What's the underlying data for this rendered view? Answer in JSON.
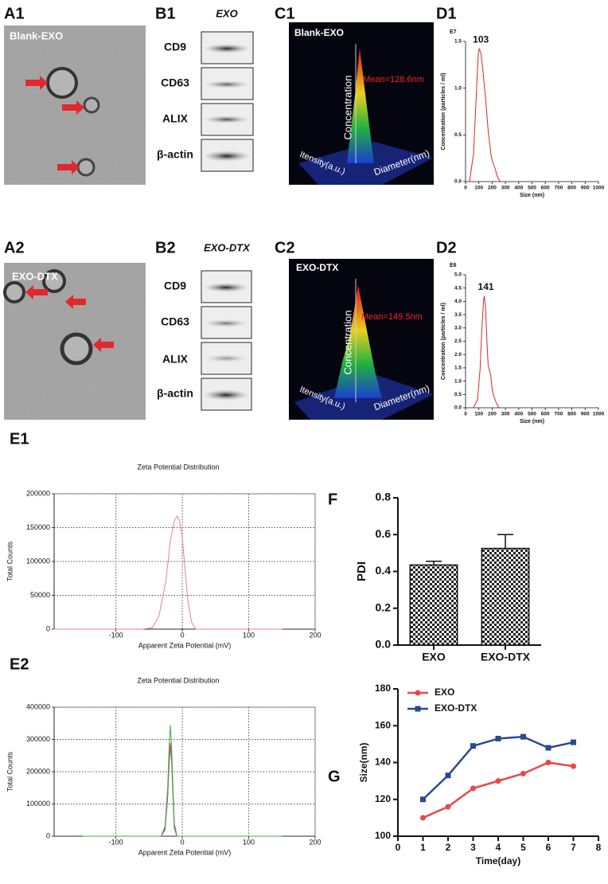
{
  "panels": [
    "A1",
    "B1",
    "C1",
    "D1",
    "A2",
    "B2",
    "C2",
    "D2",
    "E1",
    "F",
    "E2",
    "G"
  ],
  "tem": [
    {
      "label": "Blank-EXO"
    },
    {
      "label": "EXO-DTX"
    }
  ],
  "blots": [
    {
      "header": "EXO",
      "proteins": [
        "CD9",
        "CD63",
        "ALIX",
        "β-actin"
      ]
    },
    {
      "header": "EXO-DTX",
      "proteins": [
        "CD9",
        "CD63",
        "ALIX",
        "β-actin"
      ]
    }
  ],
  "nta3d": [
    {
      "label": "Blank-EXO",
      "mean": "Mean=128.6nm",
      "z_axis": "Concentration",
      "x_axis": "Itensity(a.u.)",
      "y_axis": "Diameter(nm)"
    },
    {
      "label": "EXO-DTX",
      "mean": "Mean=149.5nm",
      "z_axis": "Concentration",
      "x_axis": "Itensity(a.u.)",
      "y_axis": "Diameter(nm)"
    }
  ],
  "chart_data": [
    {
      "type": "line",
      "y_exponent": "E7",
      "peak": 103,
      "xlabel": "Size (nm)",
      "ylabel": "Concentration (particles / ml)",
      "x": [
        30,
        60,
        80,
        95,
        103,
        115,
        130,
        150,
        170,
        190,
        205,
        220,
        240,
        260
      ],
      "series": [
        {
          "color": "#d9262c",
          "values": [
            0,
            0.3,
            0.9,
            1.35,
            1.42,
            1.38,
            1.2,
            0.9,
            0.55,
            0.3,
            0.2,
            0.15,
            0.05,
            0
          ]
        }
      ],
      "xlim": [
        0,
        1000
      ],
      "ylim": [
        0,
        1.5
      ],
      "xticks": [
        0,
        100,
        200,
        300,
        400,
        500,
        600,
        700,
        800,
        900,
        1000
      ],
      "yticks": [
        {
          "value": 0,
          "label": "0.0"
        },
        0.5,
        {
          "value": 1,
          "label": "1.0"
        },
        1.5
      ]
    },
    {
      "type": "line",
      "y_exponent": "E6",
      "peak": 141,
      "xlabel": "Size (nm)",
      "ylabel": "Concentration (particles / ml)",
      "x": [
        60,
        90,
        110,
        125,
        135,
        141,
        150,
        160,
        170,
        180,
        190,
        200,
        215,
        230,
        250
      ],
      "series": [
        {
          "color": "#d9262c",
          "values": [
            0,
            0.3,
            1.5,
            3.2,
            4.0,
            4.2,
            3.8,
            2.6,
            1.6,
            1.4,
            1.2,
            0.7,
            0.4,
            0.2,
            0
          ]
        }
      ],
      "xlim": [
        0,
        1000
      ],
      "ylim": [
        0,
        5
      ],
      "xticks": [
        0,
        100,
        200,
        300,
        400,
        500,
        600,
        700,
        800,
        900,
        1000
      ],
      "yticks": [
        {
          "value": 0,
          "label": "0.0"
        },
        0.5,
        {
          "value": 1,
          "label": "1.0"
        },
        1.5,
        {
          "value": 2,
          "label": "2.0"
        },
        2.5,
        {
          "value": 3,
          "label": "3.0"
        },
        3.5,
        {
          "value": 4,
          "label": "4.0"
        },
        4.5,
        {
          "value": 5,
          "label": "5.0"
        }
      ]
    },
    {
      "type": "line",
      "title": "Zeta Potential Distribution",
      "xlabel": "Apparent Zeta Potential (mV)",
      "ylabel": "Total Counts",
      "grid": true,
      "x": [
        -193,
        -60,
        -45,
        -35,
        -25,
        -18,
        -12,
        -8,
        -4,
        0,
        4,
        8,
        14,
        20,
        150
      ],
      "series": [
        {
          "color": "#f08080",
          "values": [
            0,
            0,
            2000,
            20000,
            70000,
            130000,
            160000,
            167000,
            160000,
            135000,
            90000,
            45000,
            10000,
            0,
            0
          ]
        }
      ],
      "xlim": [
        -193,
        200
      ],
      "ylim": [
        0,
        200000
      ],
      "xticks": [
        -100,
        0,
        100,
        200
      ],
      "yticks": [
        0,
        50000,
        100000,
        150000,
        200000
      ]
    },
    {
      "type": "bar",
      "ylabel": "PDI",
      "categories": [
        "EXO",
        "EXO-DTX"
      ],
      "values": [
        0.435,
        0.525
      ],
      "errors": [
        0.02,
        0.075
      ],
      "ylim": [
        0,
        0.8
      ],
      "yticks": [
        {
          "value": 0,
          "label": "0.0"
        },
        0.2,
        0.4,
        0.6,
        0.8
      ]
    },
    {
      "type": "line",
      "title": "Zeta Potential Distribution",
      "xlabel": "Apparent Zeta Potential (mV)",
      "ylabel": "Total Counts",
      "grid": true,
      "x": [
        -150,
        -32,
        -26,
        -22,
        -20,
        -18,
        -16,
        -14,
        -12,
        -8,
        150
      ],
      "series": [
        {
          "color": "#2f6fd6",
          "values": [
            0,
            0,
            20000,
            120000,
            220000,
            280000,
            230000,
            120000,
            25000,
            0,
            0
          ]
        },
        {
          "color": "#e04040",
          "values": [
            0,
            0,
            25000,
            130000,
            230000,
            290000,
            240000,
            130000,
            30000,
            0,
            0
          ]
        },
        {
          "color": "#3cb043",
          "values": [
            0,
            0,
            30000,
            150000,
            270000,
            345000,
            270000,
            150000,
            40000,
            0,
            0
          ]
        }
      ],
      "xlim": [
        -193,
        200
      ],
      "ylim": [
        0,
        400000
      ],
      "xticks": [
        -100,
        0,
        100,
        200
      ],
      "yticks": [
        0,
        100000,
        200000,
        300000,
        400000
      ]
    },
    {
      "type": "line",
      "xlabel": "Time(day)",
      "ylabel": "Size(nm)",
      "legend": "upper left",
      "x": [
        1,
        2,
        3,
        4,
        5,
        6,
        7
      ],
      "series": [
        {
          "name": "EXO",
          "color": "#e8474b",
          "marker": "circle",
          "values": [
            110,
            116,
            126,
            130,
            134,
            140,
            138
          ]
        },
        {
          "name": "EXO-DTX",
          "color": "#2a4a8c",
          "marker": "square",
          "values": [
            120,
            133,
            149,
            153,
            154,
            148,
            151
          ]
        }
      ],
      "xlim": [
        0,
        8
      ],
      "ylim": [
        100,
        180
      ],
      "xticks": [
        0,
        1,
        2,
        3,
        4,
        5,
        6,
        7,
        8
      ],
      "yticks": [
        100,
        120,
        140,
        160,
        180
      ]
    }
  ]
}
